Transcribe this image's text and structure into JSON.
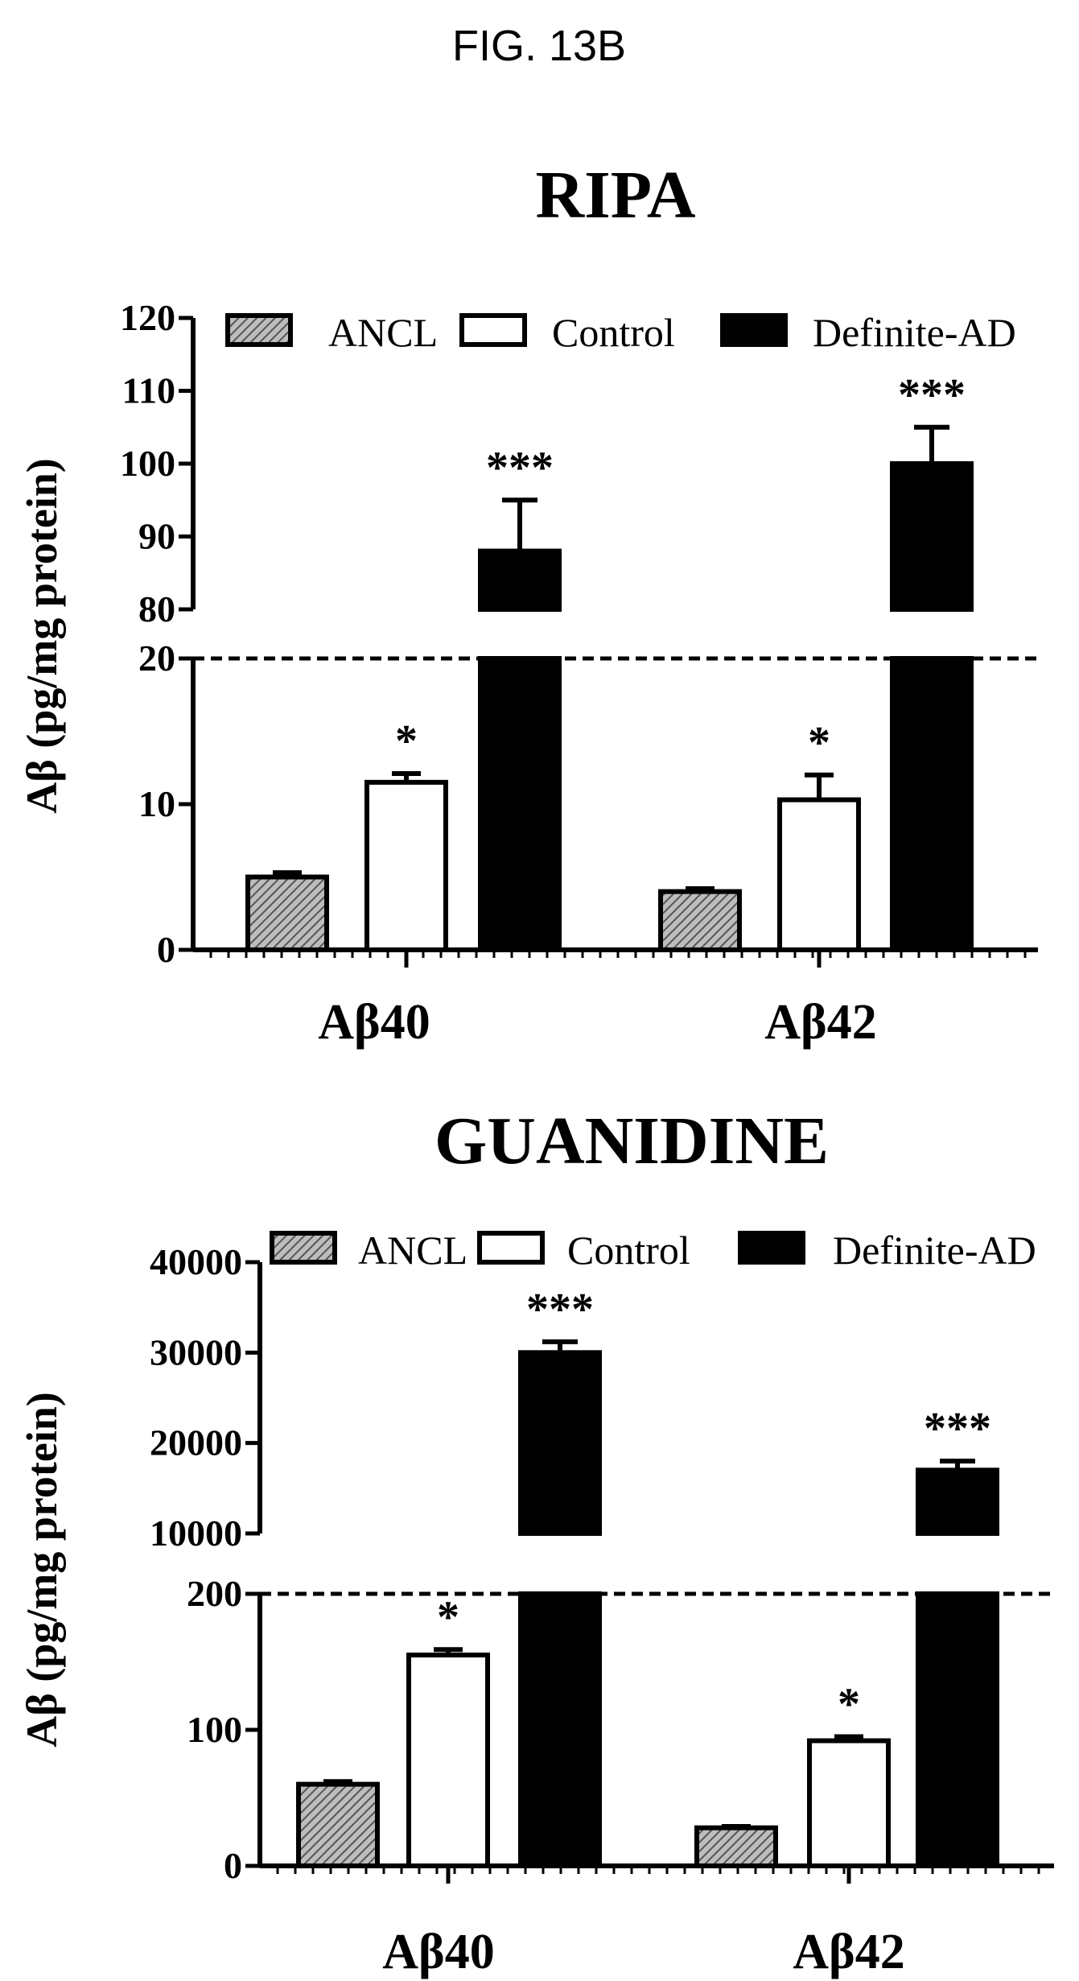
{
  "figure_title": "FIG. 13B",
  "colors": {
    "ANCL": "#9a9a9a",
    "Control": "#ffffff",
    "Definite-AD": "#000000"
  },
  "chart_data": [
    {
      "type": "bar",
      "title": "RIPA",
      "ylabel": "Aβ (pg/mg protein)",
      "xlabel": "",
      "categories": [
        "Aβ40",
        "Aβ42"
      ],
      "axis_break": true,
      "lower_range": [
        0,
        20
      ],
      "upper_range": [
        80,
        120
      ],
      "lower_ticks": [
        0,
        10,
        20
      ],
      "upper_ticks": [
        80,
        90,
        100,
        110,
        120
      ],
      "legend": [
        "ANCL",
        "Control",
        "Definite-AD"
      ],
      "legend_position": "top",
      "series": [
        {
          "name": "ANCL",
          "values": [
            5,
            4
          ],
          "errors": [
            0.3,
            0.2
          ],
          "sig": [
            "",
            ""
          ]
        },
        {
          "name": "Control",
          "values": [
            11.5,
            10.3
          ],
          "errors": [
            0.6,
            1.7
          ],
          "sig": [
            "*",
            "*"
          ]
        },
        {
          "name": "Definite-AD",
          "values": [
            88,
            100
          ],
          "errors": [
            7,
            5
          ],
          "sig": [
            "***",
            "***"
          ]
        }
      ]
    },
    {
      "type": "bar",
      "title": "GUANIDINE",
      "ylabel": "Aβ (pg/mg protein)",
      "xlabel": "",
      "categories": [
        "Aβ40",
        "Aβ42"
      ],
      "axis_break": true,
      "lower_range": [
        0,
        200
      ],
      "upper_range": [
        10000,
        40000
      ],
      "lower_ticks": [
        0,
        100,
        200
      ],
      "upper_ticks": [
        10000,
        20000,
        30000,
        40000
      ],
      "legend": [
        "ANCL",
        "Control",
        "Definite-AD"
      ],
      "legend_position": "top",
      "series": [
        {
          "name": "ANCL",
          "values": [
            60,
            28
          ],
          "errors": [
            2,
            1
          ],
          "sig": [
            "",
            ""
          ]
        },
        {
          "name": "Control",
          "values": [
            155,
            92
          ],
          "errors": [
            4,
            3
          ],
          "sig": [
            "*",
            "*"
          ]
        },
        {
          "name": "Definite-AD",
          "values": [
            30000,
            17000
          ],
          "errors": [
            1200,
            1000
          ],
          "sig": [
            "***",
            "***"
          ]
        }
      ]
    }
  ]
}
